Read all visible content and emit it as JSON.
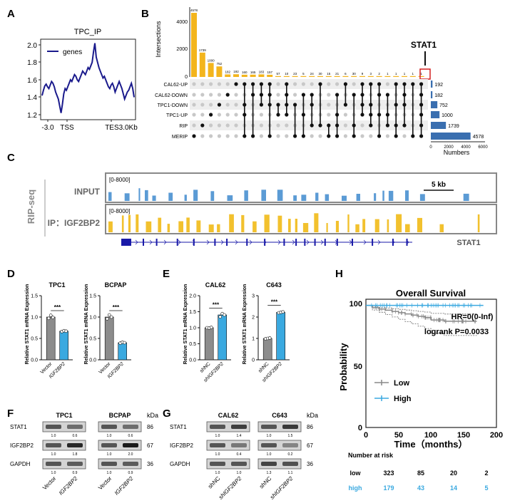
{
  "panel_letters": [
    "A",
    "B",
    "C",
    "D",
    "E",
    "F",
    "G",
    "H"
  ],
  "panelA": {
    "title": "TPC_IP",
    "legend": "genes",
    "x_ticks": [
      "-3.0",
      "TSS",
      "TES3.0Kb"
    ],
    "y_ticks": [
      "1.2",
      "1.4",
      "1.6",
      "1.8",
      "2.0"
    ]
  },
  "panelB": {
    "ylabel": "Intersections",
    "y_ticks": [
      "0",
      "2000",
      "4000"
    ],
    "highlight": "STAT1",
    "sets": [
      "CAL62-UP",
      "CAL62-DOWN",
      "TPC1-DOWN",
      "TPC1-UP",
      "RIP",
      "MERIP"
    ],
    "set_sizes": [
      192,
      182,
      752,
      1000,
      1739,
      4578
    ],
    "xlabel": "Numbers",
    "x_ticks": [
      "0",
      "2000",
      "4000",
      "6000"
    ]
  },
  "panelC": {
    "side_label": "RIP-seq",
    "input_label": "INPUT",
    "ip_label": "IP：IGF2BP2",
    "range_label": "[0-8000]",
    "scale_label": "5 kb",
    "gene": "STAT1"
  },
  "panelD": {
    "ylabel": "Relative STAT1 mRNA Expression",
    "charts": [
      {
        "title": "TPC1",
        "categories": [
          "Vector",
          "IGF2BP2"
        ],
        "sig": "***",
        "y_ticks": [
          "0.0",
          "0.5",
          "1.0",
          "1.5"
        ]
      },
      {
        "title": "BCPAP",
        "categories": [
          "Vector",
          "IGF2BP2"
        ],
        "sig": "***",
        "y_ticks": [
          "0.0",
          "0.5",
          "1.0",
          "1.5"
        ]
      }
    ]
  },
  "panelE": {
    "ylabel": "Relative STAT1 mRNA Expression",
    "charts": [
      {
        "title": "CAL62",
        "categories": [
          "shNC",
          "shIGF2BP2"
        ],
        "sig": "***",
        "y_ticks": [
          "0.0",
          "0.5",
          "1.0",
          "1.5",
          "2.0"
        ]
      },
      {
        "title": "C643",
        "categories": [
          "shNC",
          "shIGF2BP2"
        ],
        "sig": "***",
        "y_ticks": [
          "0",
          "1",
          "2",
          "3"
        ]
      }
    ]
  },
  "panelF": {
    "groups": [
      "TPC1",
      "BCPAP"
    ],
    "kda_label": "kDa",
    "proteins": [
      "STAT1",
      "IGF2BP2",
      "GAPDH"
    ],
    "kda": [
      "86",
      "67",
      "36"
    ],
    "quant": [
      [
        "1.0",
        "0.6",
        "1.0",
        "0.6"
      ],
      [
        "1.0",
        "1.8",
        "1.0",
        "2.0"
      ],
      [
        "1.0",
        "0.9",
        "1.0",
        "0.9"
      ]
    ],
    "lanes": [
      "Vector",
      "IGF2BP2",
      "Vector",
      "IGF2BP2"
    ]
  },
  "panelG": {
    "groups": [
      "CAL62",
      "C643"
    ],
    "kda_label": "kDa",
    "proteins": [
      "STAT1",
      "IGF2BP2",
      "GAPDH"
    ],
    "kda": [
      "86",
      "67",
      "36"
    ],
    "quant": [
      [
        "1.0",
        "1.4",
        "1.0",
        "1.5"
      ],
      [
        "1.0",
        "0.4",
        "1.0",
        "0.2"
      ],
      [
        "1.0",
        "1.0",
        "1.3",
        "1.1"
      ]
    ],
    "lanes": [
      "shNC",
      "shIGF2BP2",
      "shNC",
      "shIGF2BP2"
    ]
  },
  "panelH": {
    "title": "Overall Survival",
    "hr": "HR=0(0-Inf)",
    "logrank": "logrank P=0.0033",
    "ylabel": "Probability",
    "xlabel": "Time（months）",
    "legend": [
      "Low",
      "High"
    ],
    "x_ticks": [
      "0",
      "50",
      "100",
      "150",
      "200"
    ],
    "y_ticks": [
      "0",
      "50",
      "100"
    ],
    "risk_title": "Number at risk",
    "risk_rows": [
      {
        "name": "low",
        "values": [
          "323",
          "85",
          "20",
          "2"
        ]
      },
      {
        "name": "high",
        "values": [
          "179",
          "43",
          "14",
          "5"
        ]
      }
    ]
  },
  "chart_data": [
    {
      "panel": "A",
      "type": "line",
      "title": "TPC_IP",
      "series": [
        {
          "name": "genes"
        }
      ],
      "ylim": [
        1.15,
        2.05
      ],
      "y": [
        1.42,
        1.48,
        1.53,
        1.55,
        1.52,
        1.5,
        1.54,
        1.58,
        1.56,
        1.52,
        1.46,
        1.42,
        1.38,
        1.3,
        1.22,
        1.32,
        1.44,
        1.5,
        1.48,
        1.52,
        1.56,
        1.6,
        1.58,
        1.62,
        1.66,
        1.64,
        1.6,
        1.58,
        1.62,
        1.66,
        1.7,
        1.68,
        1.66,
        1.7,
        1.74,
        1.72,
        1.76,
        1.8,
        1.92,
        2.02,
        1.86,
        1.8,
        1.74,
        1.7,
        1.66,
        1.62,
        1.64,
        1.6,
        1.56,
        1.52,
        1.5,
        1.54,
        1.56,
        1.52,
        1.46,
        1.5,
        1.54,
        1.58,
        1.54,
        1.5,
        1.44,
        1.38,
        1.42,
        1.46,
        1.48,
        1.52,
        1.56,
        1.5,
        1.4
      ]
    },
    {
      "panel": "B",
      "type": "bar",
      "ylabel": "Intersections",
      "ylim": [
        0,
        4578
      ],
      "values": [
        4578,
        1739,
        1000,
        752,
        182,
        192,
        160,
        165,
        183,
        157,
        57,
        10,
        23,
        5,
        24,
        30,
        15,
        21,
        6,
        30,
        9,
        3,
        2,
        1,
        1,
        1,
        1,
        1
      ],
      "set_sizes": {
        "CAL62-UP": 192,
        "CAL62-DOWN": 182,
        "TPC1-DOWN": 752,
        "TPC1-UP": 1000,
        "RIP": 1739,
        "MERIP": 4578
      },
      "xlim": [
        0,
        6000
      ]
    },
    {
      "panel": "D",
      "type": "bar",
      "title": "TPC1",
      "categories": [
        "Vector",
        "IGF2BP2"
      ],
      "values": [
        1.0,
        0.67
      ],
      "ylim": [
        0,
        1.5
      ],
      "points": [
        [
          0.97,
          1.04,
          0.99
        ],
        [
          0.66,
          0.68,
          0.67
        ]
      ]
    },
    {
      "panel": "D",
      "type": "bar",
      "title": "BCPAP",
      "categories": [
        "Vector",
        "IGF2BP2"
      ],
      "values": [
        1.0,
        0.4
      ],
      "ylim": [
        0,
        1.5
      ],
      "points": [
        [
          0.96,
          1.05,
          1.0
        ],
        [
          0.39,
          0.41,
          0.4
        ]
      ]
    },
    {
      "panel": "E",
      "type": "bar",
      "title": "CAL62",
      "categories": [
        "shNC",
        "shIGF2BP2"
      ],
      "values": [
        1.0,
        1.4
      ],
      "ylim": [
        0,
        2.0
      ],
      "points": [
        [
          1.0,
          0.99,
          1.01
        ],
        [
          1.34,
          1.44,
          1.4
        ]
      ]
    },
    {
      "panel": "E",
      "type": "bar",
      "title": "C643",
      "categories": [
        "shNC",
        "shIGF2BP2"
      ],
      "values": [
        1.0,
        2.22
      ],
      "ylim": [
        0,
        3
      ],
      "points": [
        [
          0.98,
          1.0,
          1.02
        ],
        [
          2.2,
          2.22,
          2.24
        ]
      ]
    },
    {
      "panel": "H",
      "type": "line",
      "title": "Overall Survival",
      "xlim": [
        0,
        200
      ],
      "ylim": [
        0,
        105
      ],
      "series": [
        {
          "name": "Low",
          "x": [
            0,
            10,
            20,
            30,
            40,
            50,
            60,
            70,
            80,
            90,
            100,
            110,
            120,
            130,
            150,
            170
          ],
          "y": [
            100,
            98,
            97,
            96,
            95,
            94,
            93,
            92,
            91,
            90,
            88,
            88,
            87,
            87,
            87,
            87
          ]
        },
        {
          "name": "High",
          "x": [
            0,
            20,
            40,
            60,
            80,
            100,
            120,
            150,
            180
          ],
          "y": [
            100,
            100,
            100,
            100,
            100,
            100,
            100,
            100,
            100
          ]
        }
      ]
    }
  ]
}
